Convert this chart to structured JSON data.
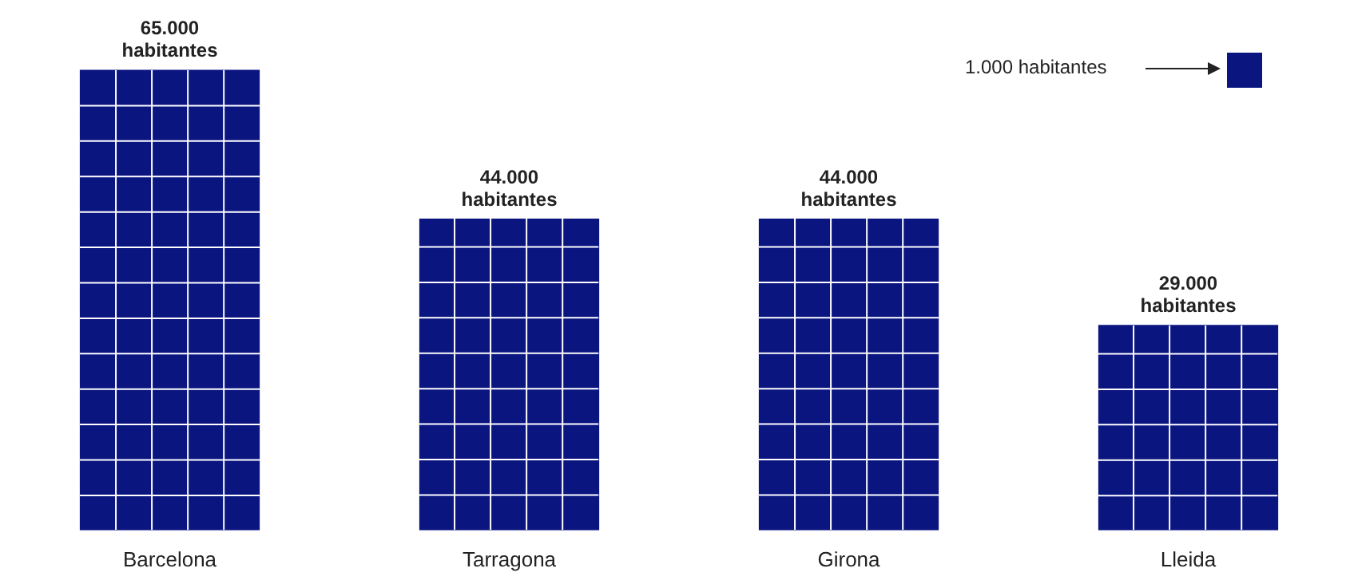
{
  "chart_data": {
    "type": "bar",
    "categories": [
      "Barcelona",
      "Tarragona",
      "Girona",
      "Lleida"
    ],
    "values": [
      65000,
      44000,
      44000,
      29000
    ],
    "value_labels": [
      "65.000\nhabitantes",
      "44.000\nhabitantes",
      "44.000\nhabitantes",
      "29.000\nhabitantes"
    ],
    "color": "#0a1580",
    "grid": false,
    "legend": false,
    "annotations": [
      "1.000 habitantes"
    ]
  }
}
